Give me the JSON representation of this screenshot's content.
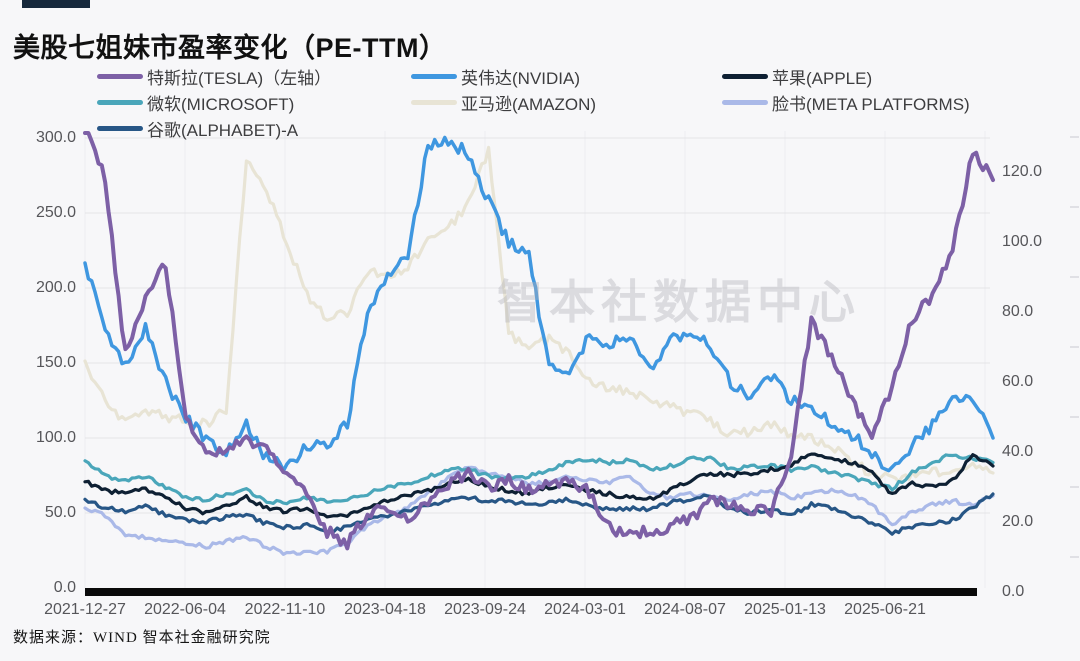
{
  "header": {
    "brand_bar_color": "#16283c",
    "title": "美股七姐妹市盈率变化（PE-TTM）"
  },
  "watermark": "智本社数据中心",
  "footer": {
    "source": "数据来源：WIND 智本社金融研究院"
  },
  "chart_data": {
    "type": "line",
    "title": "美股七姐妹市盈率变化（PE-TTM）",
    "grid": true,
    "legend_position": "top",
    "x_tick_labels": [
      "2021-12-27",
      "2022-06-04",
      "2022-11-10",
      "2023-04-18",
      "2023-09-24",
      "2024-03-01",
      "2024-08-07",
      "2025-01-13",
      "2025-06-21"
    ],
    "x_months": [
      "2021-12",
      "2022-01",
      "2022-02",
      "2022-03",
      "2022-04",
      "2022-05",
      "2022-06",
      "2022-07",
      "2022-08",
      "2022-09",
      "2022-10",
      "2022-11",
      "2022-12",
      "2023-01",
      "2023-02",
      "2023-03",
      "2023-04",
      "2023-05",
      "2023-06",
      "2023-07",
      "2023-08",
      "2023-09",
      "2023-10",
      "2023-11",
      "2023-12",
      "2024-01",
      "2024-02",
      "2024-03",
      "2024-04",
      "2024-05",
      "2024-06",
      "2024-07",
      "2024-08",
      "2024-09",
      "2024-10",
      "2024-11",
      "2024-12",
      "2025-01",
      "2025-02",
      "2025-03",
      "2025-04",
      "2025-05",
      "2025-06",
      "2025-07",
      "2025-08",
      "2025-09"
    ],
    "left_axis": {
      "applies_to": "特斯拉(TESLA)",
      "range": [
        0,
        300
      ],
      "ticks": [
        300,
        250,
        200,
        150,
        100,
        50,
        0
      ],
      "tick_labels": [
        "300.0",
        "250.0",
        "200.0",
        "150.0",
        "100.0",
        "50.0",
        "0.0"
      ]
    },
    "right_axis": {
      "range": [
        0,
        130
      ],
      "ticks": [
        120,
        100,
        80,
        60,
        40,
        20,
        0
      ],
      "tick_labels": [
        "120.0",
        "100.0",
        "80.0",
        "60.0",
        "40.0",
        "20.0",
        "0.0"
      ]
    },
    "series": [
      {
        "name": "特斯拉(TESLA)（左轴）",
        "axis": "left",
        "color": "#7d60a6",
        "values": [
          310,
          272,
          156,
          195,
          215,
          112,
          88,
          92,
          100,
          92,
          76,
          62,
          38,
          30,
          50,
          53,
          48,
          56,
          70,
          76,
          68,
          72,
          66,
          68,
          72,
          64,
          40,
          36,
          38,
          41,
          46,
          58,
          56,
          53,
          52,
          88,
          178,
          155,
          125,
          102,
          135,
          180,
          195,
          225,
          292,
          272
        ]
      },
      {
        "name": "英伟达(NVIDIA)",
        "axis": "right",
        "color": "#3f97e0",
        "values": [
          94,
          74,
          65,
          76,
          60,
          50,
          44,
          40,
          48,
          38,
          36,
          42,
          42,
          48,
          80,
          90,
          96,
          128,
          129,
          125,
          112,
          100,
          96,
          64,
          62,
          74,
          70,
          74,
          63,
          72,
          74,
          70,
          60,
          56,
          62,
          55,
          52,
          48,
          45,
          40,
          34,
          42,
          48,
          54,
          56,
          44
        ]
      },
      {
        "name": "苹果(APPLE)",
        "axis": "right",
        "color": "#0e2033",
        "values": [
          31.5,
          29,
          28,
          29.5,
          27,
          24,
          22.5,
          24.5,
          27,
          24,
          23,
          24,
          21.5,
          21.5,
          24.5,
          26,
          27.5,
          29,
          31,
          32.5,
          30,
          29,
          28,
          30,
          31,
          29,
          28,
          27,
          26.5,
          29,
          32,
          34,
          33.5,
          34,
          35,
          36,
          40,
          38,
          37,
          34,
          28,
          31,
          30,
          32,
          39,
          36
        ]
      },
      {
        "name": "微软(MICROSOFT)",
        "axis": "right",
        "color": "#4aa6ba",
        "values": [
          37.5,
          33,
          32,
          33,
          30,
          27,
          26.5,
          28,
          29,
          26,
          25.5,
          27,
          26,
          26.5,
          28,
          30,
          31,
          33,
          35,
          35,
          33,
          32.5,
          33,
          35,
          37,
          38,
          37,
          37.5,
          35,
          36,
          38,
          38,
          35,
          36,
          36,
          35,
          36,
          34,
          33,
          31,
          29.5,
          34,
          37,
          39.5,
          38,
          37
        ]
      },
      {
        "name": "亚马逊(AMAZON)",
        "axis": "right",
        "color": "#e8e4d5",
        "values": [
          66,
          54,
          48,
          52,
          50,
          49,
          48,
          52,
          124,
          115,
          100,
          85,
          78,
          80,
          92,
          90,
          93,
          100,
          104,
          111,
          126,
          74,
          70,
          72,
          68,
          60,
          58,
          57,
          55,
          53,
          51,
          49,
          45,
          46,
          48,
          45,
          44,
          42,
          37,
          34,
          32,
          33,
          34,
          35,
          36,
          34
        ]
      },
      {
        "name": "脸书(META PLATFORMS)",
        "axis": "right",
        "color": "#aab9e8",
        "values": [
          24,
          22,
          16,
          15.5,
          15,
          14,
          13,
          14.5,
          15.5,
          13,
          11,
          11.5,
          11.5,
          14,
          19,
          22,
          24,
          28,
          33,
          36,
          34,
          33,
          31,
          31,
          33,
          32,
          31.5,
          33,
          28,
          27,
          28,
          27,
          26,
          28,
          29,
          27,
          28,
          29,
          28,
          25,
          19,
          23,
          25,
          26,
          25,
          27.5
        ]
      },
      {
        "name": "谷歌(ALPHABET)-A",
        "axis": "right",
        "color": "#275686",
        "values": [
          26.5,
          24,
          23,
          24.5,
          22,
          20.5,
          20,
          21.5,
          22,
          19.5,
          18.5,
          19,
          17.5,
          18.5,
          20.5,
          22,
          23,
          24.5,
          26,
          27,
          26,
          26,
          25,
          25.5,
          26.5,
          24.5,
          23.5,
          24,
          23.5,
          25.5,
          26.5,
          27.5,
          23.5,
          22.5,
          23.5,
          22,
          25,
          24,
          22,
          19.5,
          17,
          18.5,
          19.5,
          20.5,
          24,
          28
        ]
      }
    ]
  }
}
